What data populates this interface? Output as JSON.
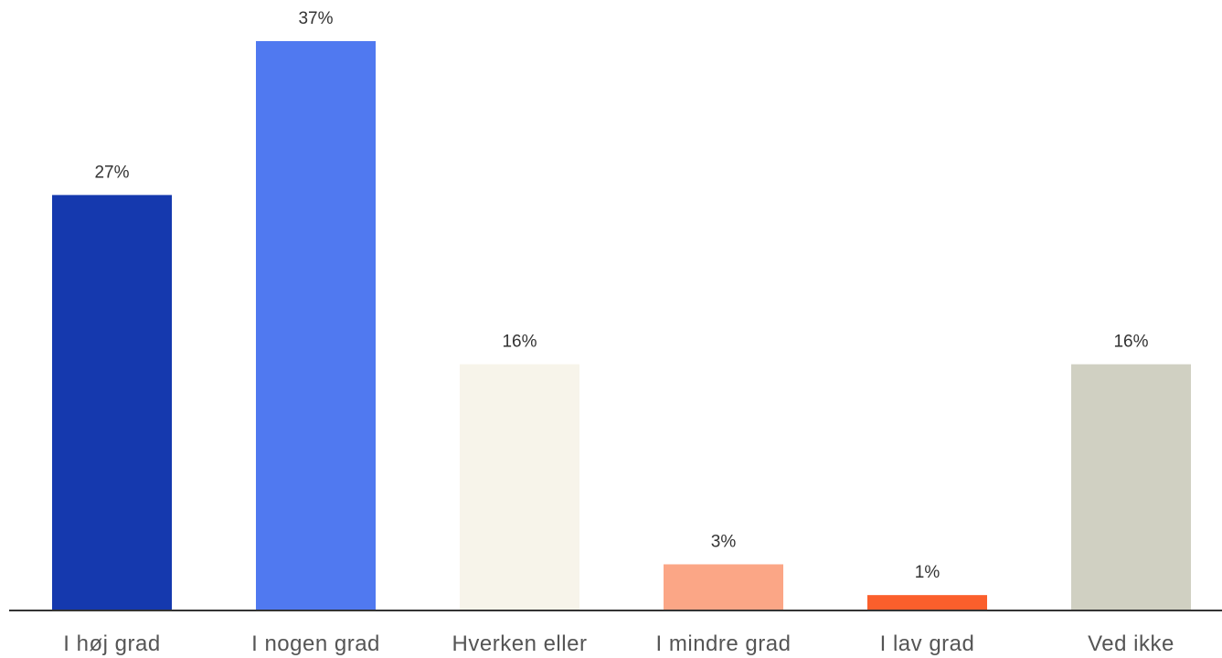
{
  "chart_data": {
    "type": "bar",
    "categories": [
      "I høj grad",
      "I nogen grad",
      "Hverken eller",
      "I mindre grad",
      "I lav grad",
      "Ved ikke"
    ],
    "values": [
      27,
      37,
      16,
      3,
      1,
      16
    ],
    "value_labels": [
      "27%",
      "37%",
      "16%",
      "3%",
      "1%",
      "16%"
    ],
    "colors": [
      "#1539ae",
      "#5079f0",
      "#f7f4ea",
      "#fba686",
      "#fb5f2c",
      "#d0d0c2"
    ],
    "title": "",
    "xlabel": "",
    "ylabel": "",
    "ylim": [
      0,
      37
    ],
    "grid": false,
    "legend": "none"
  }
}
